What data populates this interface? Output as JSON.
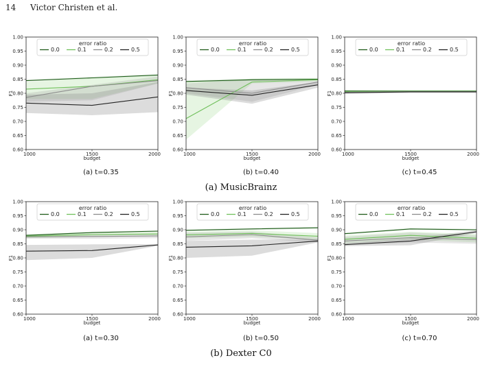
{
  "header": {
    "page_number": "14",
    "authors": "Victor Christen et al."
  },
  "captions": {
    "group_a": "(a) MusicBrainz",
    "group_b": "(b) Dexter C0"
  },
  "series_colors": [
    "#1f5c1a",
    "#6fbf5a",
    "#8c8c8c",
    "#222222"
  ],
  "chart_data": [
    {
      "type": "line",
      "group": "a",
      "caption": "(a) t=0.35",
      "x": [
        1000,
        1500,
        2000
      ],
      "xticks": [
        "1000",
        "1500",
        "2000"
      ],
      "xlabel": "budget",
      "ylabel": "F1",
      "ylim": [
        0.6,
        1.0
      ],
      "yticks": [
        "0.60",
        "0.65",
        "0.70",
        "0.75",
        "0.80",
        "0.85",
        "0.90",
        "0.95",
        "1.00"
      ],
      "legend_title": "error ratio",
      "series": [
        {
          "name": "0.0",
          "values": [
            0.845,
            0.855,
            0.865
          ],
          "lower": [
            0.842,
            0.852,
            0.862
          ],
          "upper": [
            0.848,
            0.858,
            0.868
          ]
        },
        {
          "name": "0.1",
          "values": [
            0.815,
            0.825,
            0.848
          ],
          "lower": [
            0.78,
            0.78,
            0.835
          ],
          "upper": [
            0.84,
            0.855,
            0.862
          ]
        },
        {
          "name": "0.2",
          "values": [
            0.785,
            0.825,
            0.845
          ],
          "lower": [
            0.77,
            0.775,
            0.835
          ],
          "upper": [
            0.8,
            0.83,
            0.86
          ]
        },
        {
          "name": "0.5",
          "values": [
            0.765,
            0.757,
            0.787
          ],
          "lower": [
            0.73,
            0.722,
            0.733
          ],
          "upper": [
            0.795,
            0.8,
            0.84
          ]
        }
      ]
    },
    {
      "type": "line",
      "group": "a",
      "caption": "(b) t=0.40",
      "x": [
        1000,
        1500,
        2000
      ],
      "xticks": [
        "1000",
        "1500",
        "2000"
      ],
      "xlabel": "budget",
      "ylabel": "F1",
      "ylim": [
        0.6,
        1.0
      ],
      "yticks": [
        "0.60",
        "0.65",
        "0.70",
        "0.75",
        "0.80",
        "0.85",
        "0.90",
        "0.95",
        "1.00"
      ],
      "legend_title": "error ratio",
      "series": [
        {
          "name": "0.0",
          "values": [
            0.842,
            0.848,
            0.85
          ],
          "lower": [
            0.838,
            0.845,
            0.847
          ],
          "upper": [
            0.846,
            0.852,
            0.853
          ]
        },
        {
          "name": "0.1",
          "values": [
            0.71,
            0.84,
            0.848
          ],
          "lower": [
            0.635,
            0.835,
            0.842
          ],
          "upper": [
            0.84,
            0.852,
            0.855
          ]
        },
        {
          "name": "0.2",
          "values": [
            0.82,
            0.8,
            0.84
          ],
          "lower": [
            0.8,
            0.77,
            0.83
          ],
          "upper": [
            0.835,
            0.85,
            0.85
          ]
        },
        {
          "name": "0.5",
          "values": [
            0.81,
            0.793,
            0.83
          ],
          "lower": [
            0.795,
            0.763,
            0.82
          ],
          "upper": [
            0.82,
            0.81,
            0.84
          ]
        }
      ]
    },
    {
      "type": "line",
      "group": "a",
      "caption": "(c) t=0.45",
      "x": [
        1000,
        1500,
        2000
      ],
      "xticks": [
        "1000",
        "1500",
        "2000"
      ],
      "xlabel": "budget",
      "ylabel": "F1",
      "ylim": [
        0.6,
        1.0
      ],
      "yticks": [
        "0.60",
        "0.65",
        "0.70",
        "0.75",
        "0.80",
        "0.85",
        "0.90",
        "0.95",
        "1.00"
      ],
      "legend_title": "error ratio",
      "series": [
        {
          "name": "0.0",
          "values": [
            0.808,
            0.808,
            0.808
          ],
          "lower": [
            0.805,
            0.806,
            0.806
          ],
          "upper": [
            0.812,
            0.811,
            0.811
          ]
        },
        {
          "name": "0.1",
          "values": [
            0.806,
            0.807,
            0.807
          ],
          "lower": [
            0.802,
            0.804,
            0.804
          ],
          "upper": [
            0.81,
            0.81,
            0.81
          ]
        },
        {
          "name": "0.2",
          "values": [
            0.804,
            0.806,
            0.806
          ],
          "lower": [
            0.8,
            0.803,
            0.803
          ],
          "upper": [
            0.808,
            0.809,
            0.809
          ]
        },
        {
          "name": "0.5",
          "values": [
            0.802,
            0.805,
            0.805
          ],
          "lower": [
            0.798,
            0.801,
            0.801
          ],
          "upper": [
            0.806,
            0.808,
            0.808
          ]
        }
      ]
    },
    {
      "type": "line",
      "group": "b",
      "caption": "(a) t=0.30",
      "x": [
        1000,
        1500,
        2000
      ],
      "xticks": [
        "1000",
        "1500",
        "2000"
      ],
      "xlabel": "budget",
      "ylabel": "F1",
      "ylim": [
        0.6,
        1.0
      ],
      "yticks": [
        "0.60",
        "0.65",
        "0.70",
        "0.75",
        "0.80",
        "0.85",
        "0.90",
        "0.95",
        "1.00"
      ],
      "legend_title": "error ratio",
      "series": [
        {
          "name": "0.0",
          "values": [
            0.88,
            0.89,
            0.895
          ],
          "lower": [
            0.877,
            0.887,
            0.892
          ],
          "upper": [
            0.883,
            0.893,
            0.898
          ]
        },
        {
          "name": "0.1",
          "values": [
            0.877,
            0.883,
            0.885
          ],
          "lower": [
            0.87,
            0.875,
            0.878
          ],
          "upper": [
            0.884,
            0.89,
            0.892
          ]
        },
        {
          "name": "0.2",
          "values": [
            0.875,
            0.876,
            0.878
          ],
          "lower": [
            0.868,
            0.868,
            0.87
          ],
          "upper": [
            0.882,
            0.884,
            0.886
          ]
        },
        {
          "name": "0.5",
          "values": [
            0.824,
            0.826,
            0.846
          ],
          "lower": [
            0.792,
            0.8,
            0.843
          ],
          "upper": [
            0.846,
            0.848,
            0.849
          ]
        }
      ]
    },
    {
      "type": "line",
      "group": "b",
      "caption": "(b) t=0.50",
      "x": [
        1000,
        1500,
        2000
      ],
      "xticks": [
        "1000",
        "1500",
        "2000"
      ],
      "xlabel": "budget",
      "ylabel": "F1",
      "ylim": [
        0.6,
        1.0
      ],
      "yticks": [
        "0.60",
        "0.65",
        "0.70",
        "0.75",
        "0.80",
        "0.85",
        "0.90",
        "0.95",
        "1.00"
      ],
      "legend_title": "error ratio",
      "series": [
        {
          "name": "0.0",
          "values": [
            0.898,
            0.903,
            0.907
          ],
          "lower": [
            0.895,
            0.9,
            0.904
          ],
          "upper": [
            0.901,
            0.906,
            0.91
          ]
        },
        {
          "name": "0.1",
          "values": [
            0.882,
            0.887,
            0.877
          ],
          "lower": [
            0.87,
            0.875,
            0.865
          ],
          "upper": [
            0.893,
            0.898,
            0.888
          ]
        },
        {
          "name": "0.2",
          "values": [
            0.875,
            0.883,
            0.863
          ],
          "lower": [
            0.86,
            0.87,
            0.855
          ],
          "upper": [
            0.89,
            0.893,
            0.873
          ]
        },
        {
          "name": "0.5",
          "values": [
            0.838,
            0.843,
            0.86
          ],
          "lower": [
            0.8,
            0.808,
            0.855
          ],
          "upper": [
            0.86,
            0.865,
            0.866
          ]
        }
      ]
    },
    {
      "type": "line",
      "group": "b",
      "caption": "(c) t=0.70",
      "x": [
        1000,
        1500,
        2000
      ],
      "xticks": [
        "1000",
        "1500",
        "2000"
      ],
      "xlabel": "budget",
      "ylabel": "F1",
      "ylim": [
        0.6,
        1.0
      ],
      "yticks": [
        "0.60",
        "0.65",
        "0.70",
        "0.75",
        "0.80",
        "0.85",
        "0.90",
        "0.95",
        "1.00"
      ],
      "legend_title": "error ratio",
      "series": [
        {
          "name": "0.0",
          "values": [
            0.886,
            0.903,
            0.9
          ],
          "lower": [
            0.883,
            0.9,
            0.897
          ],
          "upper": [
            0.889,
            0.906,
            0.903
          ]
        },
        {
          "name": "0.1",
          "values": [
            0.866,
            0.88,
            0.87
          ],
          "lower": [
            0.85,
            0.865,
            0.855
          ],
          "upper": [
            0.88,
            0.893,
            0.885
          ]
        },
        {
          "name": "0.2",
          "values": [
            0.86,
            0.872,
            0.865
          ],
          "lower": [
            0.845,
            0.855,
            0.85
          ],
          "upper": [
            0.875,
            0.89,
            0.88
          ]
        },
        {
          "name": "0.5",
          "values": [
            0.847,
            0.86,
            0.893
          ],
          "lower": [
            0.842,
            0.845,
            0.888
          ],
          "upper": [
            0.852,
            0.87,
            0.898
          ]
        }
      ]
    }
  ]
}
